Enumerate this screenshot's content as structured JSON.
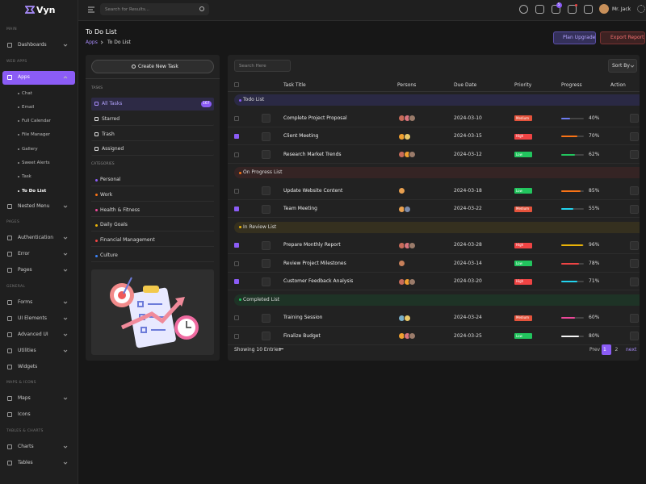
{
  "brand": "Vyn",
  "header": {
    "search_placeholder": "Search for Results...",
    "cart_badge": "5",
    "user": "Mr. Jack"
  },
  "sidebar": {
    "groups": [
      {
        "title": "MAIN",
        "items": [
          {
            "label": "Dashboards",
            "expandable": true
          }
        ]
      },
      {
        "title": "WEB APPS",
        "items": [
          {
            "label": "Apps",
            "expandable": true,
            "active": true,
            "children": [
              {
                "label": "Chat"
              },
              {
                "label": "Email"
              },
              {
                "label": "Full Calendar"
              },
              {
                "label": "File Manager"
              },
              {
                "label": "Gallery"
              },
              {
                "label": "Sweet Alerts"
              },
              {
                "label": "Task"
              },
              {
                "label": "To Do List",
                "active": true
              }
            ]
          },
          {
            "label": "Nested Menu",
            "expandable": true
          }
        ]
      },
      {
        "title": "PAGES",
        "items": [
          {
            "label": "Authentication",
            "expandable": true
          },
          {
            "label": "Error",
            "expandable": true
          },
          {
            "label": "Pages",
            "expandable": true
          }
        ]
      },
      {
        "title": "GENERAL",
        "items": [
          {
            "label": "Forms",
            "expandable": true
          },
          {
            "label": "UI Elements",
            "expandable": true
          },
          {
            "label": "Advanced UI",
            "expandable": true
          },
          {
            "label": "Utilities",
            "expandable": true
          },
          {
            "label": "Widgets",
            "expandable": false
          }
        ]
      },
      {
        "title": "MAPS & ICONS",
        "items": [
          {
            "label": "Maps",
            "expandable": true
          },
          {
            "label": "Icons",
            "expandable": false
          }
        ]
      },
      {
        "title": "TABLES & CHARTS",
        "items": [
          {
            "label": "Charts",
            "expandable": true
          },
          {
            "label": "Tables",
            "expandable": true
          }
        ]
      }
    ]
  },
  "page_header": {
    "title": "To Do List",
    "breadcrumb": [
      "Apps",
      "To Do List"
    ],
    "buttons": [
      "Plan Upgrade",
      "Export Report"
    ]
  },
  "left_panel": {
    "create_button": "Create New Task",
    "tasks_title": "TASKS",
    "tasks": [
      {
        "label": "All Tasks",
        "count": 167,
        "active": true
      },
      {
        "label": "Starred"
      },
      {
        "label": "Trash"
      },
      {
        "label": "Assigned"
      }
    ],
    "categories_title": "CATEGORIES",
    "categories": [
      {
        "label": "Personal",
        "color": "#8b5cf6"
      },
      {
        "label": "Work",
        "color": "#f97316"
      },
      {
        "label": "Health & Fitness",
        "color": "#ec4899"
      },
      {
        "label": "Daily Goals",
        "color": "#eab308"
      },
      {
        "label": "Financial Management",
        "color": "#ef4444"
      },
      {
        "label": "Culture",
        "color": "#3b82f6"
      }
    ]
  },
  "table": {
    "search_placeholder": "Search Here",
    "sort_button": "Sort By",
    "columns": [
      "Task Title",
      "Persons",
      "Due Date",
      "Priority",
      "Progress",
      "Action"
    ],
    "groups": [
      {
        "name": "Todo List",
        "band": "#2a2944",
        "dot": "#8b5cf6",
        "tasks": [
          {
            "title": "Complete Project Proposal",
            "checked": false,
            "avatars": [
              "#c86b5a",
              "#d9747e",
              "#9a7b6a"
            ],
            "due": "2024-03-10",
            "priority": "Medium",
            "priority_color": "#e5533c",
            "progress": 40,
            "progress_label": "40%",
            "bar_color": "#6d7cf0"
          },
          {
            "title": "Client Meeting",
            "checked": true,
            "avatars": [
              "#f0a030",
              "#e8c86a"
            ],
            "due": "2024-03-15",
            "priority": "High",
            "priority_color": "#ef4444",
            "progress": 70,
            "progress_label": "70%",
            "bar_color": "#f97316"
          },
          {
            "title": "Research Market Trends",
            "checked": false,
            "avatars": [
              "#c86b5a",
              "#f0a030",
              "#9a7b6a"
            ],
            "due": "2024-03-12",
            "priority": "Low",
            "priority_color": "#22c55e",
            "progress": 62,
            "progress_label": "62%",
            "bar_color": "#22c55e"
          }
        ]
      },
      {
        "name": "On Progress List",
        "band": "#352424",
        "dot": "#f97316",
        "tasks": [
          {
            "title": "Update Website Content",
            "checked": false,
            "avatars": [
              "#e8a050"
            ],
            "due": "2024-03-18",
            "priority": "Low",
            "priority_color": "#22c55e",
            "progress": 85,
            "progress_label": "85%",
            "bar_color": "#f97316"
          },
          {
            "title": "Team Meeting",
            "checked": true,
            "avatars": [
              "#e8a050",
              "#7b8aa8"
            ],
            "due": "2024-03-22",
            "priority": "Medium",
            "priority_color": "#e5533c",
            "progress": 55,
            "progress_label": "55%",
            "bar_color": "#22d3ee"
          }
        ]
      },
      {
        "name": "In Review List",
        "band": "#35301f",
        "dot": "#eab308",
        "tasks": [
          {
            "title": "Prepare Monthly Report",
            "checked": true,
            "avatars": [
              "#c86b5a",
              "#d9747e",
              "#9a7b6a"
            ],
            "due": "2024-03-28",
            "priority": "High",
            "priority_color": "#ef4444",
            "progress": 96,
            "progress_label": "96%",
            "bar_color": "#eab308"
          },
          {
            "title": "Review Project Milestones",
            "checked": false,
            "avatars": [
              "#c8805a"
            ],
            "due": "2024-03-14",
            "priority": "Low",
            "priority_color": "#22c55e",
            "progress": 78,
            "progress_label": "78%",
            "bar_color": "#ef4444"
          },
          {
            "title": "Customer Feedback Analysis",
            "checked": true,
            "avatars": [
              "#c86b5a",
              "#f0a030",
              "#9a7b6a"
            ],
            "due": "2024-03-20",
            "priority": "High",
            "priority_color": "#ef4444",
            "progress": 71,
            "progress_label": "71%",
            "bar_color": "#22d3ee"
          }
        ]
      },
      {
        "name": "Completed List",
        "band": "#1e3326",
        "dot": "#22c55e",
        "tasks": [
          {
            "title": "Training Session",
            "checked": false,
            "avatars": [
              "#7ab0c8",
              "#e8c86a"
            ],
            "due": "2024-03-24",
            "priority": "Medium",
            "priority_color": "#e5533c",
            "progress": 60,
            "progress_label": "60%",
            "bar_color": "#ec4899"
          },
          {
            "title": "Finalize Budget",
            "checked": false,
            "avatars": [
              "#f0a030",
              "#d9747e",
              "#9a7b6a"
            ],
            "due": "2024-03-25",
            "priority": "Low",
            "priority_color": "#22c55e",
            "progress": 80,
            "progress_label": "80%",
            "bar_color": "#f5f5f5"
          }
        ]
      }
    ],
    "footer": "Showing 10 Entries",
    "pagination": [
      {
        "label": "Prev"
      },
      {
        "label": "1",
        "active": true
      },
      {
        "label": "2"
      },
      {
        "label": "next",
        "link": true
      }
    ]
  }
}
